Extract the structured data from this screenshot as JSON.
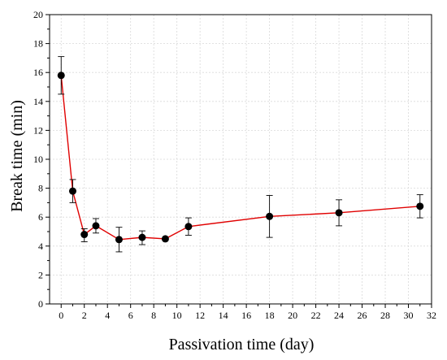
{
  "chart_data": {
    "type": "line",
    "title": "",
    "xlabel": "Passivation time (day)",
    "ylabel": "Break time (min)",
    "xlim": [
      -1,
      32
    ],
    "ylim": [
      0,
      20
    ],
    "xticks": [
      0,
      2,
      4,
      6,
      8,
      10,
      12,
      14,
      16,
      18,
      20,
      22,
      24,
      26,
      28,
      30,
      32
    ],
    "yticks": [
      0,
      2,
      4,
      6,
      8,
      10,
      12,
      14,
      16,
      18,
      20
    ],
    "grid": true,
    "legend": "none",
    "series": [
      {
        "line_color": "#e00000",
        "marker_color": "#000000",
        "x": [
          0,
          1,
          2,
          3,
          5,
          7,
          9,
          11,
          18,
          24,
          31
        ],
        "y": [
          15.8,
          7.8,
          4.8,
          5.4,
          4.45,
          4.6,
          4.5,
          5.35,
          6.05,
          6.3,
          6.75
        ],
        "err_low": [
          14.5,
          7.0,
          4.3,
          4.9,
          3.6,
          4.1,
          4.4,
          4.75,
          4.6,
          5.4,
          5.95
        ],
        "err_high": [
          17.1,
          8.6,
          5.2,
          5.9,
          5.3,
          5.05,
          4.6,
          5.95,
          7.5,
          7.2,
          7.55
        ]
      }
    ]
  }
}
